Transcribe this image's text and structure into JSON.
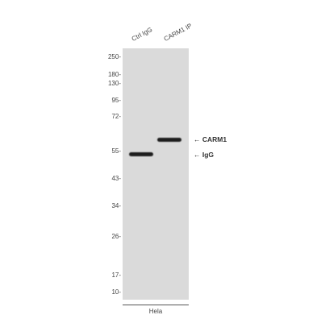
{
  "lanes": [
    "Ctrl IgG",
    "CARM1 IP"
  ],
  "markers": [
    "250-",
    "180-",
    "130-",
    "95-",
    "72-",
    "55-",
    "43-",
    "34-",
    "26-",
    "17-",
    "10-"
  ],
  "bands": [
    {
      "label": "← CARM1"
    },
    {
      "label": "← IgG"
    }
  ],
  "sample_label": "Hela"
}
